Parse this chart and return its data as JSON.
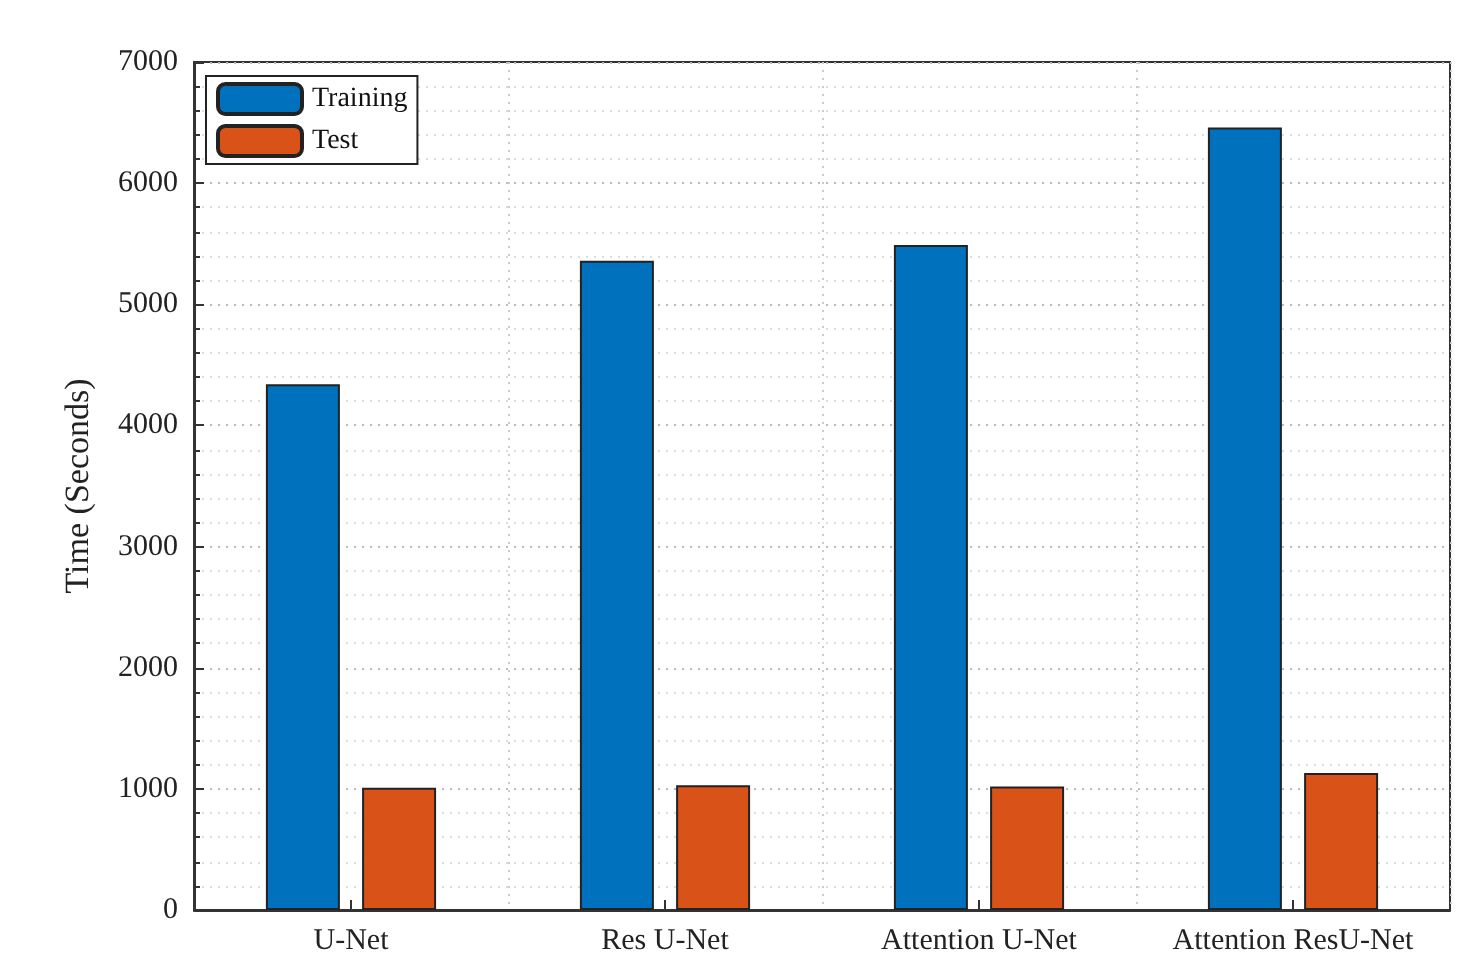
{
  "chart_data": {
    "type": "bar",
    "ylabel": "Time (Seconds)",
    "categories": [
      "U-Net",
      "Res U-Net",
      "Attention U-Net",
      "Attention ResU-Net"
    ],
    "series": [
      {
        "name": "Training",
        "color": "#0072bd",
        "values": [
          4340,
          5360,
          5490,
          6460
        ]
      },
      {
        "name": "Test",
        "color": "#d95319",
        "values": [
          1010,
          1030,
          1020,
          1130
        ]
      }
    ],
    "ylim": [
      0,
      7000
    ],
    "yticks": [
      0,
      1000,
      2000,
      3000,
      4000,
      5000,
      6000,
      7000
    ],
    "grid": true,
    "legend": "top left"
  }
}
